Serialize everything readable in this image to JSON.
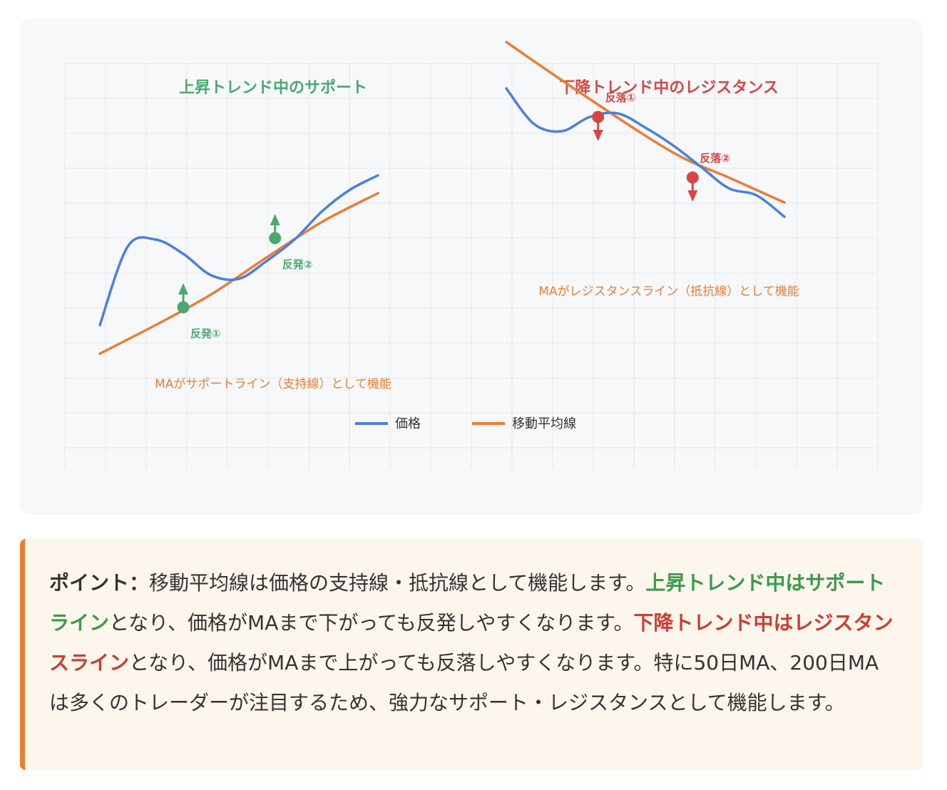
{
  "colors": {
    "price": "#4a7fe0",
    "ma": "#ed7d31",
    "up": "#4aaa6e",
    "down": "#d94545",
    "grid": "#e5e7eb",
    "note_accent": "#ed7d31"
  },
  "chart_data": {
    "type": "line",
    "grid": true,
    "legend_placement": "bottom-center",
    "legend": [
      {
        "label": "価格",
        "color": "#4a7fe0"
      },
      {
        "label": "移動平均線",
        "color": "#ed7d31"
      }
    ],
    "panels": [
      {
        "title": "上昇トレンド中のサポート",
        "trend": "up",
        "caption": "MAがサポートライン（支持線）として機能",
        "price": [
          [
            0,
            0.4
          ],
          [
            10,
            1.5
          ],
          [
            20,
            1.6
          ],
          [
            30,
            1.4
          ],
          [
            40,
            1.1
          ],
          [
            50,
            1.05
          ],
          [
            60,
            1.3
          ],
          [
            70,
            1.6
          ],
          [
            80,
            2.0
          ],
          [
            90,
            2.3
          ],
          [
            100,
            2.5
          ]
        ],
        "ma": [
          [
            0,
            0.0
          ],
          [
            20,
            0.4
          ],
          [
            40,
            0.83
          ],
          [
            60,
            1.35
          ],
          [
            80,
            1.85
          ],
          [
            100,
            2.25
          ]
        ],
        "bounces": [
          {
            "label": "反発①",
            "x": 30,
            "y": 0.65
          },
          {
            "label": "反発②",
            "x": 63,
            "y": 1.62
          }
        ]
      },
      {
        "title": "下降トレンド中のレジスタンス",
        "trend": "down",
        "caption": "MAがレジスタンスライン（抵抗線）として機能",
        "price": [
          [
            0,
            3.2
          ],
          [
            10,
            2.7
          ],
          [
            20,
            2.6
          ],
          [
            30,
            2.8
          ],
          [
            40,
            2.85
          ],
          [
            50,
            2.65
          ],
          [
            60,
            2.4
          ],
          [
            70,
            2.1
          ],
          [
            80,
            1.8
          ],
          [
            90,
            1.7
          ],
          [
            100,
            1.4
          ]
        ],
        "ma": [
          [
            0,
            3.85
          ],
          [
            30,
            3.05
          ],
          [
            60,
            2.3
          ],
          [
            80,
            1.95
          ],
          [
            100,
            1.6
          ]
        ],
        "bounces": [
          {
            "label": "反落①",
            "x": 33,
            "y": 2.8
          },
          {
            "label": "反落②",
            "x": 67,
            "y": 1.95
          }
        ]
      }
    ]
  },
  "note": {
    "lead": "ポイント：",
    "text1": "移動平均線は価格の支持線・抵抗線として機能します。",
    "green": "上昇トレンド中はサポートライン",
    "text2": "となり、価格がMAまで下がっても反発しやすくなります。",
    "red": "下降トレンド中はレジスタンスライン",
    "text3": "となり、価格がMAまで上がっても反落しやすくなります。特に50日MA、200日MAは多くのトレーダーが注目するため、強力なサポート・レジスタンスとして機能します。"
  }
}
